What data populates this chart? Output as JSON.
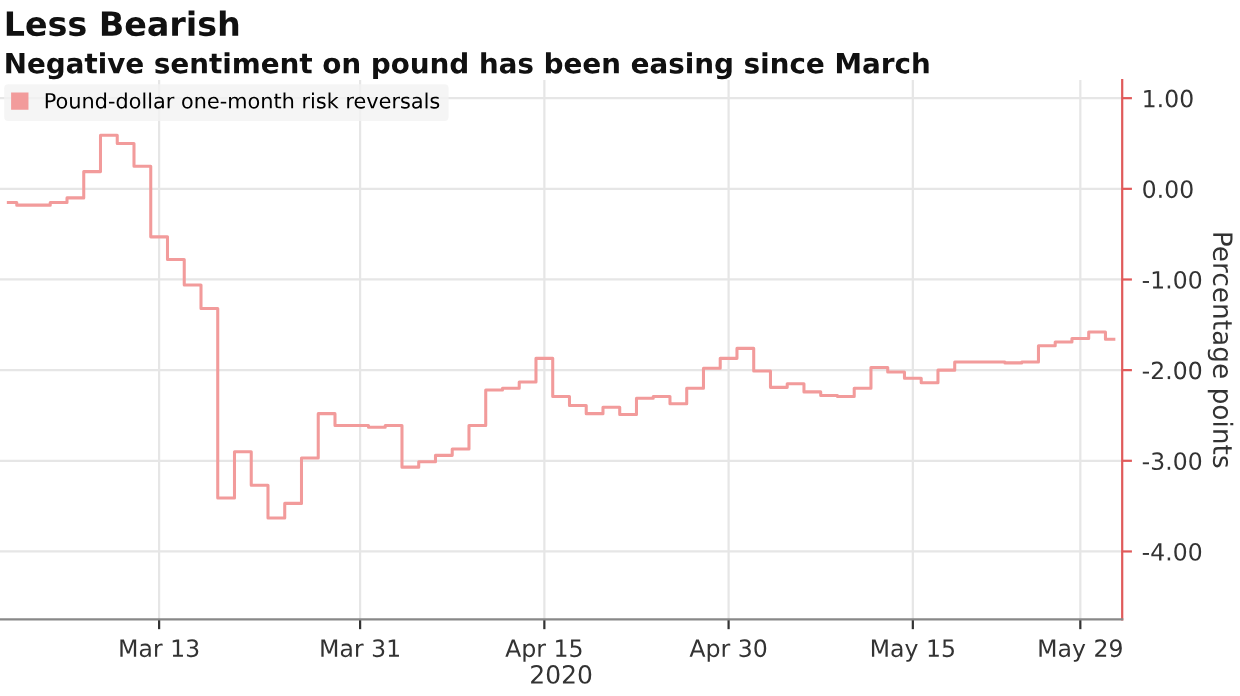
{
  "chart_data": {
    "type": "step",
    "title": "Less Bearish",
    "subtitle": "Negative sentiment on pound has been easing since March",
    "xlabel": "2020",
    "ylabel": "Percentage points",
    "categories": [
      null,
      null,
      null,
      null,
      null,
      null,
      null,
      null,
      null,
      "Mar 13",
      null,
      null,
      null,
      null,
      null,
      null,
      null,
      null,
      null,
      null,
      null,
      "Mar 31",
      null,
      null,
      null,
      null,
      null,
      null,
      null,
      null,
      null,
      null,
      "Apr 15",
      null,
      null,
      null,
      null,
      null,
      null,
      null,
      null,
      null,
      null,
      "Apr 30",
      null,
      null,
      null,
      null,
      null,
      null,
      null,
      null,
      null,
      null,
      "May 15",
      null,
      null,
      null,
      null,
      null,
      null,
      null,
      null,
      null,
      "May 29",
      null,
      null
    ],
    "series": [
      {
        "name": "Pound-dollar one-month risk reversals",
        "color": "#f29b9b",
        "values": [
          -0.15,
          -0.18,
          -0.18,
          -0.15,
          -0.1,
          0.19,
          0.59,
          0.5,
          0.25,
          -0.53,
          -0.78,
          -1.06,
          -1.32,
          -3.41,
          -2.9,
          -3.27,
          -3.63,
          -3.47,
          -2.97,
          -2.48,
          -2.61,
          -2.61,
          -2.63,
          -2.61,
          -3.07,
          -3.01,
          -2.94,
          -2.87,
          -2.61,
          -2.22,
          -2.2,
          -2.13,
          -1.87,
          -2.29,
          -2.39,
          -2.48,
          -2.41,
          -2.49,
          -2.31,
          -2.29,
          -2.37,
          -2.2,
          -1.98,
          -1.87,
          -1.76,
          -2.01,
          -2.19,
          -2.15,
          -2.24,
          -2.28,
          -2.29,
          -2.2,
          -1.97,
          -2.02,
          -2.09,
          -2.14,
          -2.0,
          -1.91,
          -1.91,
          -1.91,
          -1.92,
          -1.91,
          -1.73,
          -1.69,
          -1.65,
          -1.58,
          -1.66
        ]
      }
    ],
    "ylim": [
      -4.75,
      1.2
    ],
    "yticks": [
      {
        "value": 1,
        "label": "1.00"
      },
      {
        "value": 0,
        "label": "0.00"
      },
      {
        "value": -1,
        "label": "-1.00"
      },
      {
        "value": -2,
        "label": "-2.00"
      },
      {
        "value": -3,
        "label": "-3.00"
      },
      {
        "value": -4,
        "label": "-4.00"
      }
    ],
    "grid": true,
    "legend": "top left"
  }
}
